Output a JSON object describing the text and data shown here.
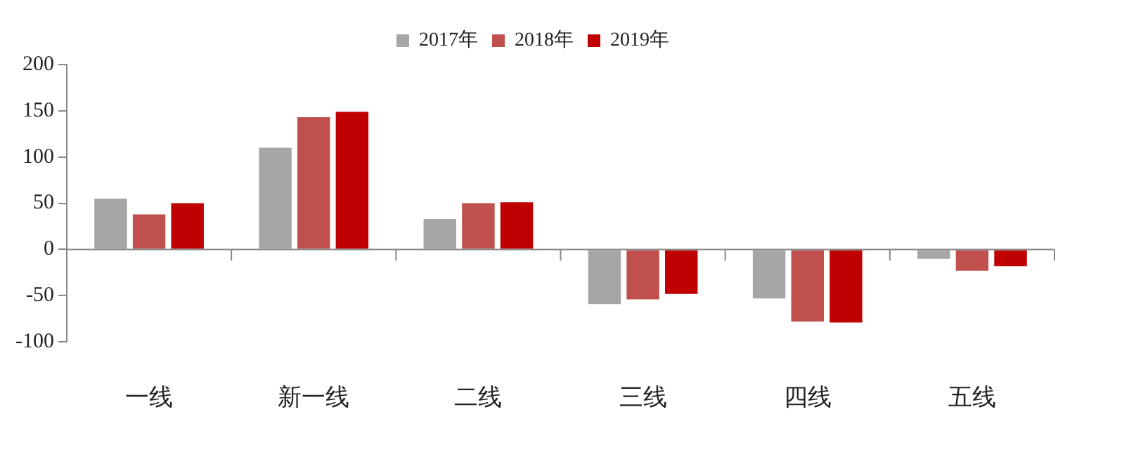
{
  "chart_data": {
    "type": "bar",
    "categories": [
      "一线",
      "新一线",
      "二线",
      "三线",
      "四线",
      "五线"
    ],
    "series": [
      {
        "name": "2017年",
        "color": "#a6a6a6",
        "values": [
          55,
          110,
          33,
          -59,
          -53,
          -10
        ]
      },
      {
        "name": "2018年",
        "color": "#c0504d",
        "values": [
          38,
          143,
          50,
          -54,
          -78,
          -23
        ]
      },
      {
        "name": "2019年",
        "color": "#c00000",
        "values": [
          50,
          149,
          51,
          -48,
          -79,
          -18
        ]
      }
    ],
    "ylim": [
      -100,
      200
    ],
    "yticks": [
      -100,
      -50,
      0,
      50,
      100,
      150,
      200
    ],
    "legend": "top"
  }
}
